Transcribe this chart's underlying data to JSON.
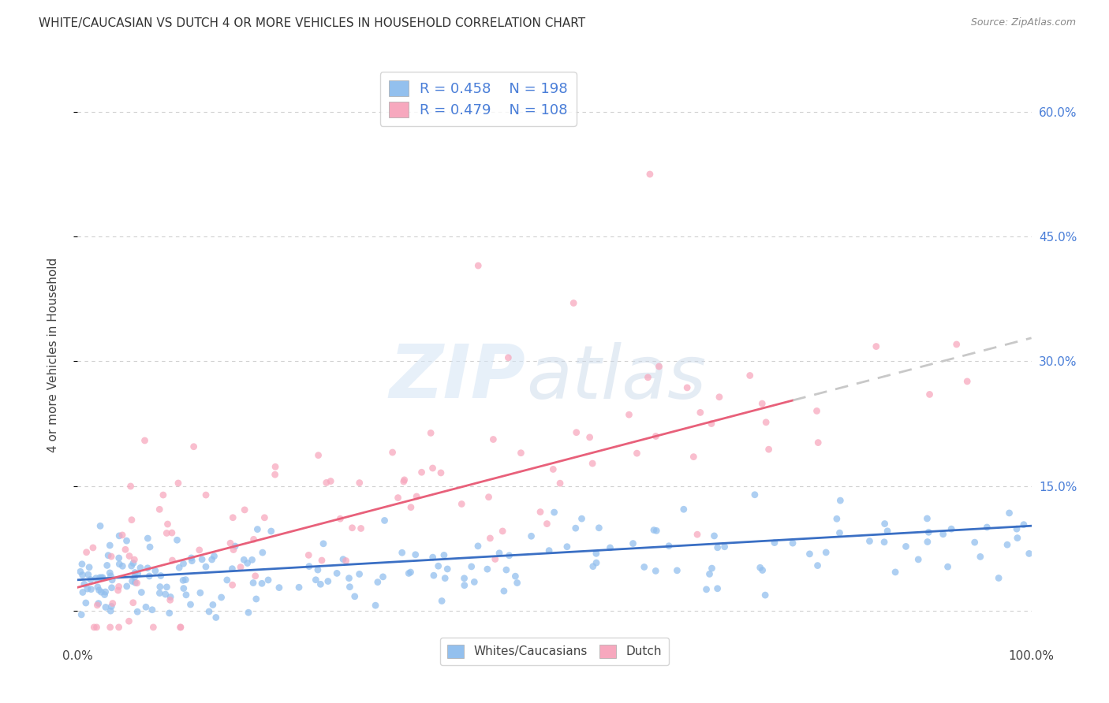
{
  "title": "WHITE/CAUCASIAN VS DUTCH 4 OR MORE VEHICLES IN HOUSEHOLD CORRELATION CHART",
  "source": "Source: ZipAtlas.com",
  "ylabel": "4 or more Vehicles in Household",
  "watermark_zip": "ZIP",
  "watermark_atlas": "atlas",
  "legend_blue_R": "0.458",
  "legend_blue_N": "198",
  "legend_pink_R": "0.479",
  "legend_pink_N": "108",
  "blue_dot_color": "#93C0EE",
  "pink_dot_color": "#F7A8BE",
  "blue_line_color": "#3A6FC4",
  "pink_line_color": "#E8607A",
  "dashed_line_color": "#C8C8C8",
  "background_color": "#ffffff",
  "grid_color": "#D0D0D0",
  "title_color": "#333333",
  "right_axis_label_color": "#4A7ED8",
  "xlim": [
    0.0,
    1.0
  ],
  "ylim": [
    -0.035,
    0.65
  ],
  "seed": 77
}
